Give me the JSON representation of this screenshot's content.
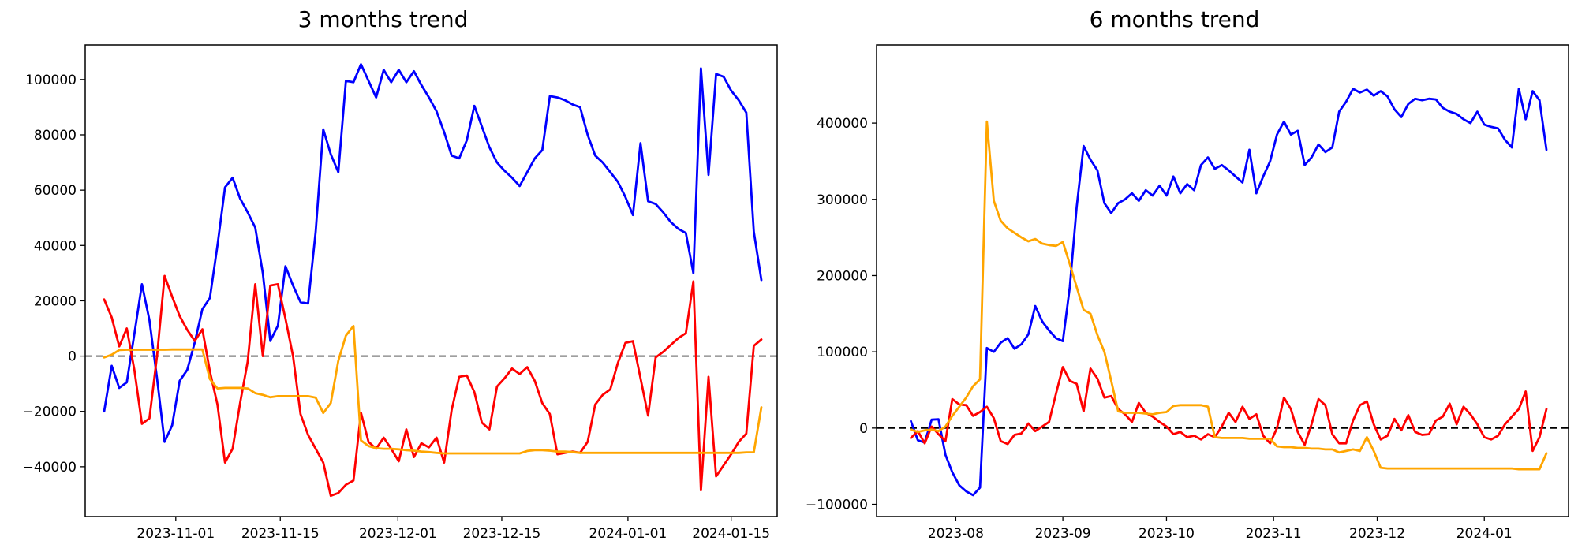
{
  "page": {
    "background": "#ffffff",
    "text_color": "#000000"
  },
  "chart_data": [
    {
      "type": "line",
      "title": "3 months trend",
      "xlabel": "",
      "ylabel": "",
      "grid": false,
      "legend": null,
      "x_start": "2023-10-23",
      "x_end": "2024-01-18",
      "x_step_days": 1,
      "ylim": [
        -58000,
        112500
      ],
      "yticks": [
        100000,
        80000,
        60000,
        40000,
        20000,
        0,
        -20000,
        -40000
      ],
      "xticks": [
        {
          "label": "2023-11-01",
          "t": 0.109
        },
        {
          "label": "2023-11-15",
          "t": 0.268
        },
        {
          "label": "2023-12-01",
          "t": 0.447
        },
        {
          "label": "2023-12-15",
          "t": 0.605
        },
        {
          "label": "2024-01-01",
          "t": 0.797
        },
        {
          "label": "2024-01-15",
          "t": 0.954
        }
      ],
      "zero_line": {
        "style": "dashed",
        "color": "#000000"
      },
      "series": [
        {
          "name": "blue",
          "color": "#0000ff",
          "values": [
            -20000,
            -3500,
            -11500,
            -9500,
            8000,
            26000,
            13000,
            -8000,
            -31000,
            -25000,
            -9000,
            -5000,
            5000,
            17000,
            21000,
            40000,
            61000,
            64500,
            57000,
            52000,
            46500,
            30000,
            5500,
            11000,
            32500,
            25500,
            19500,
            19000,
            45000,
            82000,
            73000,
            66500,
            99500,
            99000,
            105500,
            99500,
            93500,
            103500,
            99000,
            103500,
            99000,
            103000,
            98000,
            93500,
            88500,
            81000,
            72500,
            71500,
            78000,
            90500,
            83000,
            75500,
            70000,
            67000,
            64500,
            61500,
            66500,
            71500,
            74500,
            94000,
            93500,
            92500,
            91000,
            90000,
            80000,
            72500,
            70000,
            66500,
            63000,
            57500,
            51000,
            77000,
            56000,
            55000,
            52000,
            48500,
            46000,
            44500,
            30000,
            104000,
            65500,
            102000,
            101000,
            96000,
            92500,
            88000,
            45000,
            27500
          ]
        },
        {
          "name": "red",
          "color": "#ff0000",
          "values": [
            20500,
            14000,
            3500,
            10000,
            -5000,
            -24500,
            -22500,
            0,
            29000,
            21500,
            14500,
            9500,
            5500,
            9700,
            -5500,
            -17500,
            -38500,
            -33500,
            -17000,
            -2000,
            26000,
            0,
            25500,
            26000,
            13500,
            0,
            -21000,
            -28500,
            -33500,
            -38500,
            -50500,
            -49500,
            -46500,
            -45000,
            -20500,
            -31000,
            -33500,
            -29500,
            -33500,
            -38000,
            -26500,
            -36500,
            -31500,
            -33000,
            -29500,
            -38500,
            -19500,
            -7500,
            -7000,
            -13000,
            -24000,
            -26500,
            -11000,
            -8000,
            -4500,
            -6500,
            -4000,
            -9000,
            -17000,
            -21000,
            -35500,
            -35000,
            -34500,
            -35000,
            -31000,
            -17500,
            -14000,
            -12000,
            -2500,
            4800,
            5400,
            -8000,
            -21500,
            -500,
            1500,
            4000,
            6500,
            8300,
            27000,
            -48500,
            -7500,
            -43500,
            -39500,
            -35500,
            -31000,
            -28000,
            3700,
            6000
          ]
        },
        {
          "name": "orange",
          "color": "#ffa500",
          "values": [
            -500,
            500,
            2200,
            2300,
            2300,
            2300,
            2300,
            2300,
            2300,
            2400,
            2400,
            2400,
            2400,
            2400,
            -8300,
            -11700,
            -11500,
            -11500,
            -11500,
            -11700,
            -13400,
            -14000,
            -14900,
            -14500,
            -14500,
            -14500,
            -14500,
            -14500,
            -15000,
            -20600,
            -17000,
            -1700,
            7400,
            10900,
            -30500,
            -32500,
            -33300,
            -33500,
            -33500,
            -33700,
            -34000,
            -34200,
            -34500,
            -34700,
            -35000,
            -35200,
            -35200,
            -35200,
            -35200,
            -35200,
            -35200,
            -35200,
            -35200,
            -35200,
            -35200,
            -35200,
            -34300,
            -34000,
            -34000,
            -34200,
            -34500,
            -34500,
            -34700,
            -35000,
            -35000,
            -35000,
            -35000,
            -35000,
            -35000,
            -35000,
            -35000,
            -35000,
            -35000,
            -35000,
            -35000,
            -35000,
            -35000,
            -35000,
            -35000,
            -35000,
            -35000,
            -35000,
            -35000,
            -35000,
            -35000,
            -34800,
            -34800,
            -18500
          ]
        }
      ]
    },
    {
      "type": "line",
      "title": "6 months trend",
      "xlabel": "",
      "ylabel": "",
      "grid": false,
      "legend": null,
      "x_start": "2023-07-15",
      "x_end": "2024-01-19",
      "x_step_days": 2,
      "ylim": [
        -116000,
        502500
      ],
      "yticks": [
        400000,
        300000,
        200000,
        100000,
        0,
        -100000
      ],
      "xticks": [
        {
          "label": "2023-08",
          "t": 0.0904
        },
        {
          "label": "2023-09",
          "t": 0.2553
        },
        {
          "label": "2023-10",
          "t": 0.4149
        },
        {
          "label": "2023-11",
          "t": 0.5798
        },
        {
          "label": "2023-12",
          "t": 0.7394
        },
        {
          "label": "2024-01",
          "t": 0.9043
        }
      ],
      "zero_line": {
        "style": "dashed",
        "color": "#000000"
      },
      "series": [
        {
          "name": "blue",
          "color": "#0000ff",
          "values": [
            null,
            null,
            9000,
            -16000,
            -19000,
            11000,
            11500,
            -35000,
            -58000,
            -75000,
            -83000,
            -88000,
            -78000,
            105000,
            100000,
            112000,
            118000,
            104000,
            110000,
            123000,
            160000,
            140000,
            128000,
            118000,
            114000,
            185000,
            290000,
            370000,
            352000,
            338000,
            295000,
            282000,
            295000,
            300000,
            308000,
            298000,
            312000,
            305000,
            318000,
            305000,
            330000,
            308000,
            320000,
            312000,
            345000,
            355000,
            340000,
            345000,
            338000,
            330000,
            322000,
            365000,
            308000,
            330000,
            350000,
            385000,
            402000,
            385000,
            390000,
            345000,
            355000,
            372000,
            362000,
            368000,
            415000,
            428000,
            445000,
            440000,
            444000,
            436000,
            442000,
            435000,
            418000,
            408000,
            425000,
            432000,
            430000,
            432000,
            431000,
            420000,
            415000,
            412000,
            405000,
            400000,
            415000,
            398000,
            395000,
            393000,
            378000,
            368000,
            445000,
            405000,
            442000,
            430000,
            365000
          ]
        },
        {
          "name": "red",
          "color": "#ff0000",
          "values": [
            null,
            null,
            -13000,
            -4000,
            -20000,
            2000,
            -8000,
            -17000,
            38000,
            31000,
            30000,
            16000,
            21000,
            28000,
            13000,
            -17000,
            -21000,
            -9000,
            -7000,
            6000,
            -4000,
            2000,
            8000,
            45000,
            80000,
            62000,
            58000,
            22000,
            78000,
            65000,
            40000,
            42000,
            25000,
            18000,
            8000,
            33000,
            20000,
            15000,
            8000,
            2000,
            -8000,
            -5000,
            -12000,
            -10000,
            -15000,
            -8000,
            -12000,
            2000,
            20000,
            8000,
            28000,
            12000,
            18000,
            -10000,
            -20000,
            0,
            40000,
            25000,
            -5000,
            -22000,
            5000,
            38000,
            30000,
            -8000,
            -20000,
            -20000,
            10000,
            30000,
            35000,
            5000,
            -15000,
            -10000,
            12000,
            -3000,
            17000,
            -5000,
            -9000,
            -8000,
            10000,
            15000,
            32000,
            5000,
            28000,
            18000,
            5000,
            -12000,
            -15000,
            -10000,
            5000,
            15000,
            25000,
            48000,
            -30000,
            -12000,
            25000
          ]
        },
        {
          "name": "orange",
          "color": "#ffa500",
          "values": [
            null,
            null,
            -2000,
            -5000,
            -3000,
            -2000,
            -4000,
            2000,
            16000,
            28000,
            40000,
            55000,
            64000,
            402000,
            298000,
            272000,
            262000,
            256000,
            250000,
            245000,
            248000,
            242000,
            240000,
            239000,
            244000,
            215000,
            185000,
            155000,
            150000,
            122000,
            100000,
            62000,
            22000,
            20000,
            20000,
            20000,
            19000,
            18000,
            20000,
            21000,
            29000,
            30000,
            30000,
            30000,
            30000,
            28000,
            -12000,
            -13000,
            -13000,
            -13000,
            -13000,
            -14000,
            -14000,
            -14000,
            -14000,
            -24000,
            -25000,
            -25000,
            -26000,
            -26000,
            -27000,
            -27000,
            -28000,
            -28000,
            -32000,
            -30000,
            -28000,
            -30000,
            -12000,
            -30000,
            -52000,
            -53000,
            -53000,
            -53000,
            -53000,
            -53000,
            -53000,
            -53000,
            -53000,
            -53000,
            -53000,
            -53000,
            -53000,
            -53000,
            -53000,
            -53000,
            -53000,
            -53000,
            -53000,
            -53000,
            -54000,
            -54000,
            -54000,
            -54000,
            -33000
          ]
        }
      ]
    }
  ]
}
